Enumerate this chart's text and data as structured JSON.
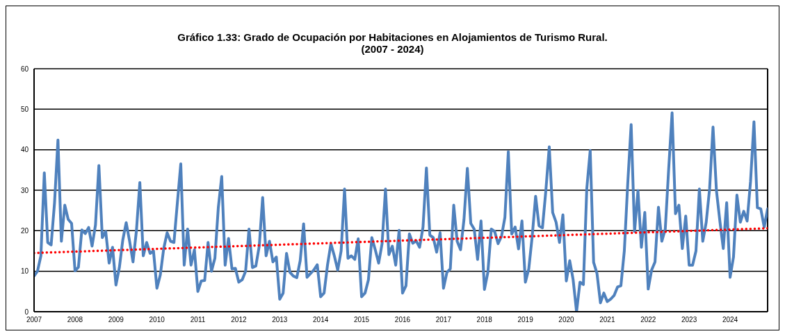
{
  "chart_data": {
    "type": "line",
    "title": "Gráfico 1.33: Grado de Ocupación por Habitaciones en Alojamientos de Turismo Rural.\n(2007 - 2024)",
    "x": [
      "2007-01",
      "2007-02",
      "2007-03",
      "2007-04",
      "2007-05",
      "2007-06",
      "2007-07",
      "2007-08",
      "2007-09",
      "2007-10",
      "2007-11",
      "2007-12",
      "2008-01",
      "2008-02",
      "2008-03",
      "2008-04",
      "2008-05",
      "2008-06",
      "2008-07",
      "2008-08",
      "2008-09",
      "2008-10",
      "2008-11",
      "2008-12",
      "2009-01",
      "2009-02",
      "2009-03",
      "2009-04",
      "2009-05",
      "2009-06",
      "2009-07",
      "2009-08",
      "2009-09",
      "2009-10",
      "2009-11",
      "2009-12",
      "2010-01",
      "2010-02",
      "2010-03",
      "2010-04",
      "2010-05",
      "2010-06",
      "2010-07",
      "2010-08",
      "2010-09",
      "2010-10",
      "2010-11",
      "2010-12",
      "2011-01",
      "2011-02",
      "2011-03",
      "2011-04",
      "2011-05",
      "2011-06",
      "2011-07",
      "2011-08",
      "2011-09",
      "2011-10",
      "2011-11",
      "2011-12",
      "2012-01",
      "2012-02",
      "2012-03",
      "2012-04",
      "2012-05",
      "2012-06",
      "2012-07",
      "2012-08",
      "2012-09",
      "2012-10",
      "2012-11",
      "2012-12",
      "2013-01",
      "2013-02",
      "2013-03",
      "2013-04",
      "2013-05",
      "2013-06",
      "2013-07",
      "2013-08",
      "2013-09",
      "2013-10",
      "2013-11",
      "2013-12",
      "2014-01",
      "2014-02",
      "2014-03",
      "2014-04",
      "2014-05",
      "2014-06",
      "2014-07",
      "2014-08",
      "2014-09",
      "2014-10",
      "2014-11",
      "2014-12",
      "2015-01",
      "2015-02",
      "2015-03",
      "2015-04",
      "2015-05",
      "2015-06",
      "2015-07",
      "2015-08",
      "2015-09",
      "2015-10",
      "2015-11",
      "2015-12",
      "2016-01",
      "2016-02",
      "2016-03",
      "2016-04",
      "2016-05",
      "2016-06",
      "2016-07",
      "2016-08",
      "2016-09",
      "2016-10",
      "2016-11",
      "2016-12",
      "2017-01",
      "2017-02",
      "2017-03",
      "2017-04",
      "2017-05",
      "2017-06",
      "2017-07",
      "2017-08",
      "2017-09",
      "2017-10",
      "2017-11",
      "2017-12",
      "2018-01",
      "2018-02",
      "2018-03",
      "2018-04",
      "2018-05",
      "2018-06",
      "2018-07",
      "2018-08",
      "2018-09",
      "2018-10",
      "2018-11",
      "2018-12",
      "2019-01",
      "2019-02",
      "2019-03",
      "2019-04",
      "2019-05",
      "2019-06",
      "2019-07",
      "2019-08",
      "2019-09",
      "2019-10",
      "2019-11",
      "2019-12",
      "2020-01",
      "2020-02",
      "2020-03",
      "2020-04",
      "2020-05",
      "2020-06",
      "2020-07",
      "2020-08",
      "2020-09",
      "2020-10",
      "2020-11",
      "2020-12",
      "2021-01",
      "2021-02",
      "2021-03",
      "2021-04",
      "2021-05",
      "2021-06",
      "2021-07",
      "2021-08",
      "2021-09",
      "2021-10",
      "2021-11",
      "2021-12",
      "2022-01",
      "2022-02",
      "2022-03",
      "2022-04",
      "2022-05",
      "2022-06",
      "2022-07",
      "2022-08",
      "2022-09",
      "2022-10",
      "2022-11",
      "2022-12",
      "2023-01",
      "2023-02",
      "2023-03",
      "2023-04",
      "2023-05",
      "2023-06",
      "2023-07",
      "2023-08",
      "2023-09",
      "2023-10",
      "2023-11",
      "2023-12",
      "2024-01",
      "2024-02",
      "2024-03",
      "2024-04",
      "2024-05",
      "2024-06",
      "2024-07",
      "2024-08",
      "2024-09",
      "2024-10",
      "2024-11",
      "2024-12"
    ],
    "series": [
      {
        "color": "#4f81bd",
        "line_style": "solid",
        "values": [
          8.8,
          10,
          13.8,
          34.3,
          17.1,
          16.5,
          26.9,
          42.4,
          17.4,
          26.3,
          22.8,
          21.8,
          10.1,
          11,
          20.2,
          19.3,
          20.8,
          16.2,
          21.4,
          36.1,
          18.3,
          19.8,
          12,
          15.9,
          6.6,
          10.9,
          17.7,
          22,
          17.4,
          12.3,
          20,
          31.9,
          13.8,
          17.1,
          14.4,
          15,
          5.8,
          9.1,
          15.6,
          19.5,
          17.4,
          17.1,
          26.9,
          36.5,
          11.5,
          20.4,
          11.5,
          15.3,
          5,
          7.6,
          7.7,
          17.1,
          10,
          13.2,
          25.7,
          33.4,
          11.5,
          18.1,
          10.6,
          10.7,
          7.3,
          7.9,
          10,
          20.4,
          10.9,
          11.3,
          16.2,
          28.2,
          13.8,
          17.4,
          12.3,
          13.5,
          3.1,
          4.6,
          14.4,
          9.7,
          8.8,
          8.4,
          12.6,
          21.7,
          8.5,
          9.4,
          10.3,
          11.6,
          3.7,
          4.6,
          11.5,
          16.8,
          13.8,
          10.3,
          15,
          30.3,
          13.2,
          13.8,
          12.9,
          18,
          3.7,
          4.6,
          7.9,
          18.3,
          15.3,
          12,
          16.8,
          30.3,
          14.1,
          16.2,
          11.5,
          20.1,
          4.6,
          6.4,
          19.2,
          16.9,
          17.5,
          15.9,
          20.9,
          35.5,
          18.9,
          18.3,
          14.7,
          19.5,
          5.8,
          9.7,
          10.6,
          26.3,
          17.4,
          15.3,
          22.7,
          35.4,
          21.8,
          20.4,
          12.9,
          22.4,
          5.5,
          9.7,
          20.4,
          19.8,
          16.8,
          18.6,
          23.3,
          39.5,
          19.2,
          20.9,
          15.5,
          22.4,
          7.3,
          10.6,
          18.6,
          28.5,
          21.2,
          20.7,
          29.9,
          40.7,
          24.5,
          22.1,
          17.1,
          23.9,
          7.6,
          12.6,
          7.9,
          0,
          7.3,
          6.7,
          30.4,
          39.8,
          12.2,
          9.4,
          2.2,
          4.6,
          2.5,
          3.1,
          4,
          6.1,
          6.4,
          15,
          31.6,
          46.2,
          19.8,
          29.9,
          15.9,
          24.5,
          5.6,
          10.3,
          12.3,
          25.8,
          17.4,
          20.4,
          35.2,
          49.1,
          24.2,
          26.3,
          15.6,
          23.6,
          11.5,
          11.5,
          15,
          30.3,
          17.4,
          22.1,
          30.4,
          45.6,
          29.9,
          22.4,
          15.6,
          26.9,
          8.5,
          13.5,
          28.8,
          22.1,
          24.8,
          22.4,
          32.2,
          46.9,
          25.7,
          25.4,
          20.9,
          25.4
        ]
      },
      {
        "type": "line",
        "color": "#ff0000",
        "line_style": "dotted",
        "x": [
          "2007-01",
          "2024-12"
        ],
        "values": [
          14.5,
          20.6
        ]
      }
    ],
    "xlim": [
      "2007-01",
      "2024-12"
    ],
    "xticks": [
      "2007",
      "2008",
      "2009",
      "2010",
      "2011",
      "2012",
      "2013",
      "2014",
      "2015",
      "2016",
      "2017",
      "2018",
      "2019",
      "2020",
      "2021",
      "2022",
      "2023",
      "2024"
    ],
    "ylim": [
      0,
      60
    ],
    "yticks": [
      0,
      10,
      20,
      30,
      40,
      50,
      60
    ],
    "grid": "y"
  }
}
